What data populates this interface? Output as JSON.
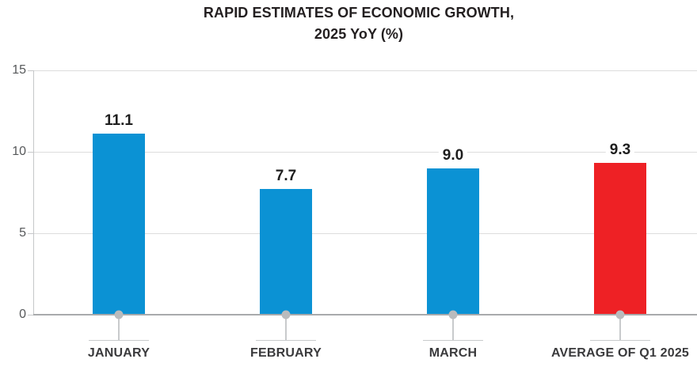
{
  "title": {
    "line1": "RAPID ESTIMATES OF ECONOMIC GROWTH,",
    "line2": "2025 YoY (%)"
  },
  "chart_data": {
    "type": "bar",
    "title": "RAPID ESTIMATES OF ECONOMIC GROWTH, 2025 YoY (%)",
    "categories": [
      "JANUARY",
      "FEBRUARY",
      "MARCH",
      "AVERAGE OF Q1 2025"
    ],
    "values": [
      11.1,
      7.7,
      9.0,
      9.3
    ],
    "value_labels": [
      "11.1",
      "7.7",
      "9.0",
      "9.3"
    ],
    "bar_colors": [
      "#0B92D4",
      "#0B92D4",
      "#0B92D4",
      "#EE2125"
    ],
    "ylim": [
      0,
      15
    ],
    "yticks": [
      0,
      5,
      10,
      15
    ],
    "xlabel": "",
    "ylabel": "",
    "grid": true,
    "legend": "none",
    "highlight": {
      "category": "AVERAGE OF Q1 2025",
      "color": "#EE2125"
    }
  },
  "colors": {
    "bar_blue": "#0B92D4",
    "bar_red": "#EE2125",
    "background": "#FFFFFF"
  }
}
